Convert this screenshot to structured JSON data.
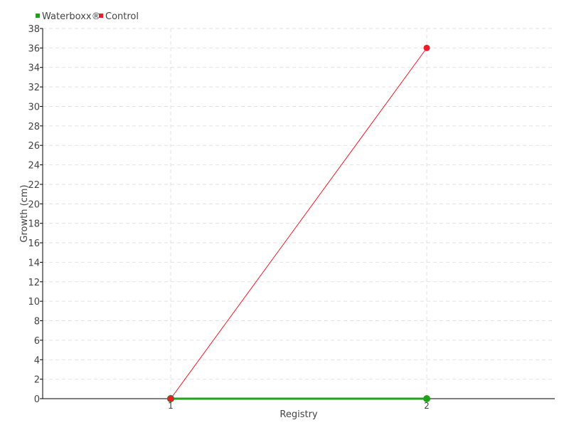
{
  "chart_data": {
    "type": "line",
    "title": "",
    "xlabel": "Registry",
    "ylabel": "Growth (cm)",
    "categories": [
      "1",
      "2"
    ],
    "x": [
      1,
      2
    ],
    "xlim": [
      0.5,
      2.5
    ],
    "ylim": [
      0,
      38
    ],
    "yticks": [
      0,
      2,
      4,
      6,
      8,
      10,
      12,
      14,
      16,
      18,
      20,
      22,
      24,
      26,
      28,
      30,
      32,
      34,
      36,
      38
    ],
    "grid": true,
    "legend_placement": "top-left",
    "series": [
      {
        "name": "Waterboxx®",
        "values": [
          0,
          0
        ],
        "color": "#22a01c"
      },
      {
        "name": "Control",
        "values": [
          0,
          36
        ],
        "color": "#ee1c2a"
      }
    ]
  }
}
